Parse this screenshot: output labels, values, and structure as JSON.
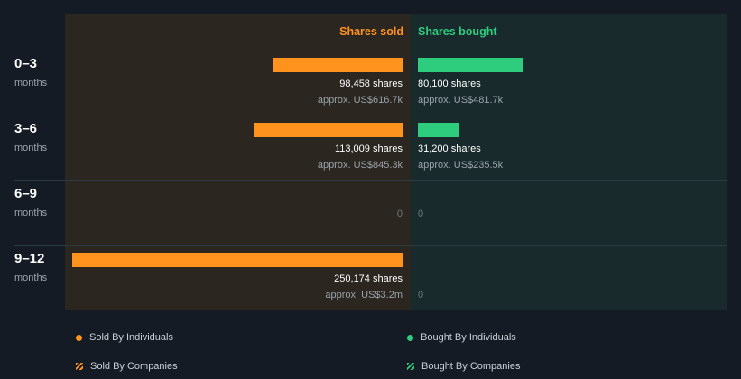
{
  "colors": {
    "sold": "#ff931e",
    "bought": "#2ecc7d"
  },
  "chart_data": {
    "type": "bar",
    "headers": {
      "sold": "Shares sold",
      "bought": "Shares bought"
    },
    "categories": [
      "0–3",
      "3–6",
      "6–9",
      "9–12"
    ],
    "category_unit": "months",
    "series": [
      {
        "name": "Shares sold",
        "values": [
          98458,
          113009,
          0,
          250174
        ],
        "share_labels": [
          "98,458 shares",
          "113,009 shares",
          "0",
          "250,174 shares"
        ],
        "approx_labels": [
          "approx. US$616.7k",
          "approx. US$845.3k",
          "",
          "approx. US$3.2m"
        ]
      },
      {
        "name": "Shares bought",
        "values": [
          80100,
          31200,
          0,
          0
        ],
        "share_labels": [
          "80,100 shares",
          "31,200 shares",
          "0",
          "0"
        ],
        "approx_labels": [
          "approx. US$481.7k",
          "approx. US$235.5k",
          "",
          ""
        ]
      }
    ],
    "legend": [
      {
        "label": "Sold By Individuals",
        "marker": "dot",
        "color": "#ff931e"
      },
      {
        "label": "Bought By Individuals",
        "marker": "dot",
        "color": "#2ecc7d"
      },
      {
        "label": "Sold By Companies",
        "marker": "hatch",
        "color": "#ff931e"
      },
      {
        "label": "Bought By Companies",
        "marker": "hatch",
        "color": "#2ecc7d"
      }
    ]
  }
}
